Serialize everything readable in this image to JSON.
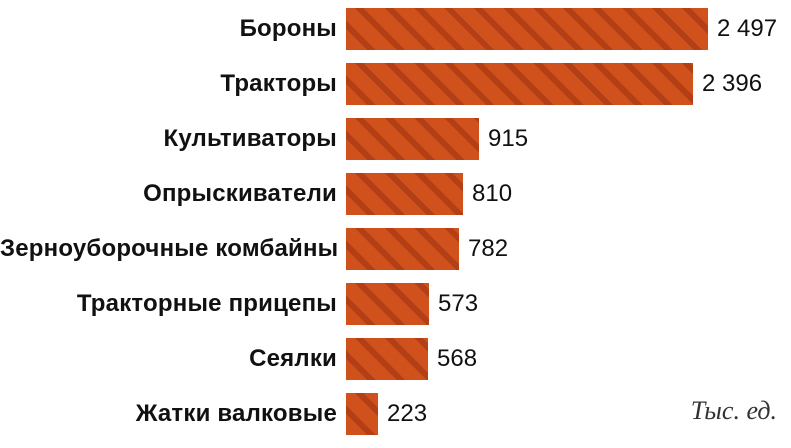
{
  "chart_data": {
    "type": "bar",
    "orientation": "horizontal",
    "title": "",
    "xlabel": "",
    "ylabel": "",
    "grid": false,
    "legend": false,
    "xlim": [
      0,
      2600
    ],
    "categories": [
      "Бороны",
      "Тракторы",
      "Культиваторы",
      "Опрыскиватели",
      "Зерноуборочные комбайны",
      "Тракторные прицепы",
      "Сеялки",
      "Жатки валковые"
    ],
    "values": [
      2497,
      2396,
      915,
      810,
      782,
      573,
      568,
      223
    ],
    "value_labels": [
      "2 497",
      "2 396",
      "915",
      "810",
      "782",
      "573",
      "568",
      "223"
    ],
    "unit_note": "Тыс. ед.",
    "colors": {
      "bar_fill": "#d1511c",
      "bar_stripe": "#b23f15",
      "label_text": "#111111",
      "unit_note_text": "#333333"
    }
  }
}
